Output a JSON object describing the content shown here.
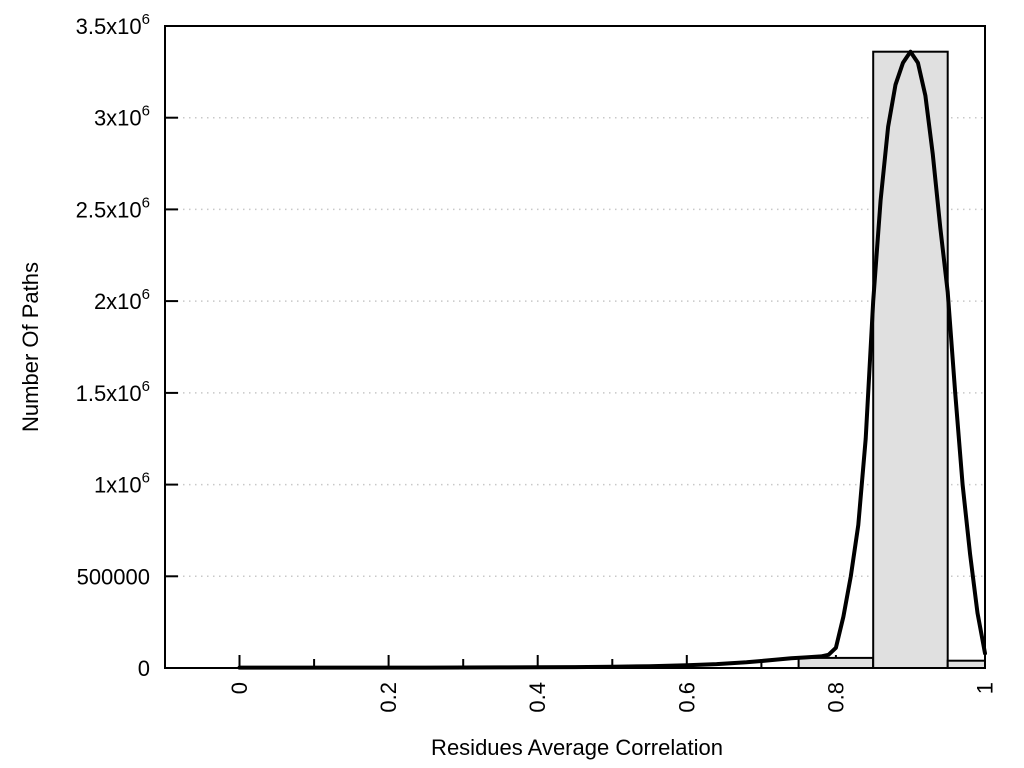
{
  "chart_data": {
    "type": "bar",
    "subtype": "histogram-with-fit-curve",
    "title": "",
    "xlabel": "Residues Average Correlation",
    "ylabel": "Number Of Paths",
    "xlim": [
      -0.1,
      1.0
    ],
    "ylim": [
      0,
      3500000
    ],
    "grid": {
      "horizontal": true,
      "vertical": false,
      "style": "dotted"
    },
    "legend": "none",
    "x_major_ticks": {
      "values": [
        0,
        0.2,
        0.4,
        0.6,
        0.8,
        1.0
      ],
      "labels": [
        "0",
        "0.2",
        "0.4",
        "0.6",
        "0.8",
        "1"
      ],
      "rotated": true
    },
    "x_minor_ticks": [
      0.1,
      0.3,
      0.5,
      0.7,
      0.9
    ],
    "y_ticks": {
      "values": [
        0,
        500000,
        1000000,
        1500000,
        2000000,
        2500000,
        3000000,
        3500000
      ],
      "labels": [
        "0",
        "500000",
        "1x10^6",
        "1.5x10^6",
        "2x10^6",
        "2.5x10^6",
        "3x10^6",
        "3.5x10^6"
      ]
    },
    "bars": {
      "bin_width": 0.1,
      "centers": [
        0.8,
        0.9,
        1.0
      ],
      "values": [
        55000,
        3360000,
        40000
      ]
    },
    "curve": {
      "name": "fit-curve",
      "peak_x": 0.9,
      "peak_y": 3360000,
      "points": [
        [
          0.0,
          2000
        ],
        [
          0.05,
          2000
        ],
        [
          0.1,
          2000
        ],
        [
          0.15,
          2000
        ],
        [
          0.2,
          2000
        ],
        [
          0.25,
          2000
        ],
        [
          0.3,
          2500
        ],
        [
          0.35,
          3000
        ],
        [
          0.4,
          4000
        ],
        [
          0.45,
          5000
        ],
        [
          0.5,
          7000
        ],
        [
          0.55,
          10000
        ],
        [
          0.6,
          15000
        ],
        [
          0.64,
          21000
        ],
        [
          0.68,
          31000
        ],
        [
          0.7,
          38000
        ],
        [
          0.72,
          46000
        ],
        [
          0.74,
          53000
        ],
        [
          0.76,
          58000
        ],
        [
          0.78,
          63000
        ],
        [
          0.79,
          72000
        ],
        [
          0.8,
          110000
        ],
        [
          0.81,
          280000
        ],
        [
          0.82,
          500000
        ],
        [
          0.83,
          780000
        ],
        [
          0.84,
          1250000
        ],
        [
          0.85,
          2000000
        ],
        [
          0.86,
          2550000
        ],
        [
          0.87,
          2950000
        ],
        [
          0.88,
          3180000
        ],
        [
          0.89,
          3300000
        ],
        [
          0.895,
          3330000
        ],
        [
          0.9,
          3360000
        ],
        [
          0.905,
          3330000
        ],
        [
          0.91,
          3300000
        ],
        [
          0.92,
          3120000
        ],
        [
          0.93,
          2800000
        ],
        [
          0.94,
          2400000
        ],
        [
          0.95,
          2050000
        ],
        [
          0.96,
          1500000
        ],
        [
          0.97,
          1000000
        ],
        [
          0.98,
          620000
        ],
        [
          0.99,
          300000
        ],
        [
          1.0,
          80000
        ]
      ]
    },
    "colors": {
      "background": "#ffffff",
      "bar_fill": "#e0e0e0",
      "bar_border": "#000000",
      "curve": "#000000",
      "grid": "#c8c8c8",
      "frame": "#000000",
      "text": "#000000"
    }
  }
}
